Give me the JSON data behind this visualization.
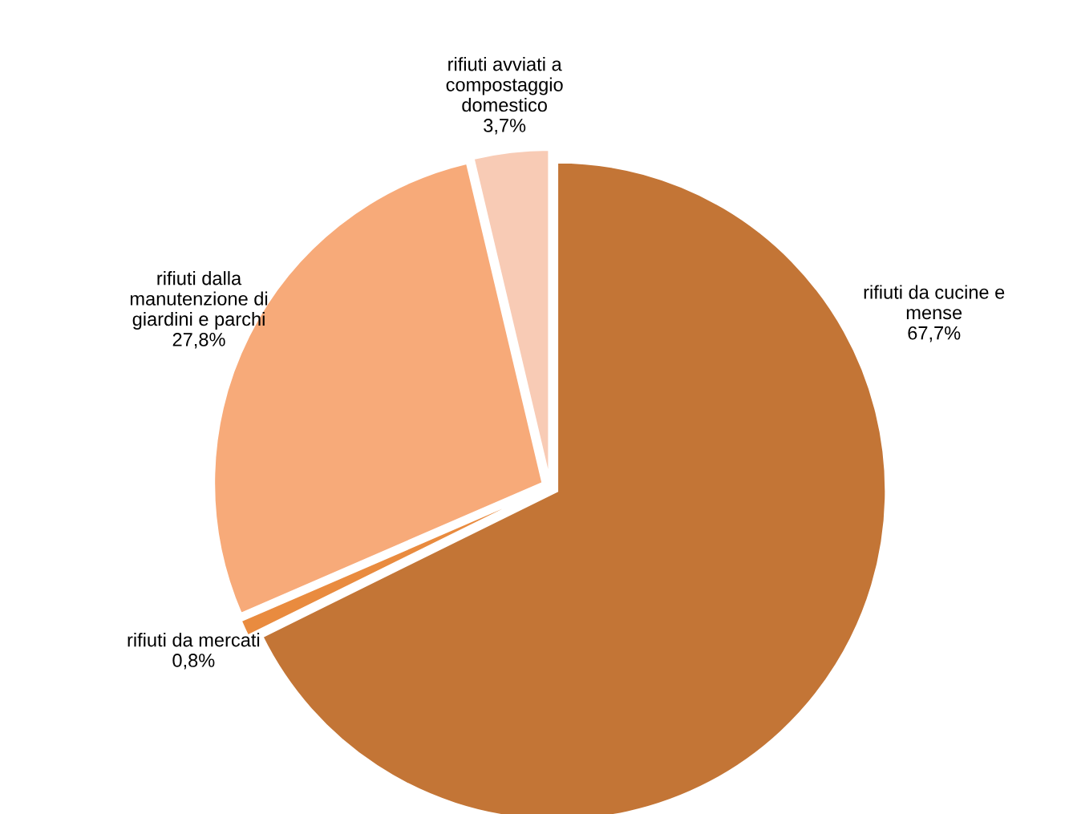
{
  "chart_data": {
    "type": "pie",
    "categories": [
      "rifiuti da cucine e mense",
      "rifiuti da mercati",
      "rifiuti dalla manutenzione di giardini e parchi",
      "rifiuti avviati a compostaggio domestico"
    ],
    "values": [
      67.7,
      0.8,
      27.8,
      3.7
    ],
    "colors": [
      "#c37536",
      "#e98b3f",
      "#f7aa79",
      "#f8cbb5"
    ],
    "value_labels": [
      "67,7%",
      "0,8%",
      "27,8%",
      "3,7%"
    ],
    "legend": false
  }
}
